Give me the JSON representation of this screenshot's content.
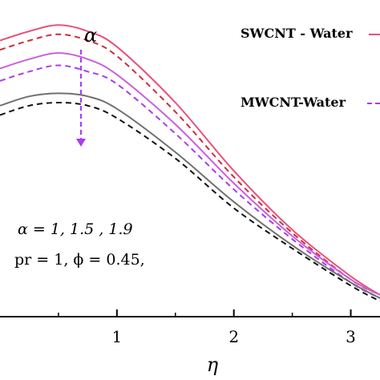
{
  "chart_data": {
    "type": "line",
    "xlabel": "η",
    "x_ticks": [
      "1",
      "2",
      "3"
    ],
    "xlim": [
      0,
      3.25
    ],
    "ylim": [
      0,
      1
    ],
    "grid": false,
    "legend_position": "top-right",
    "legend": [
      "SWCNT - Water",
      "MWCNT-Water"
    ],
    "alpha_symbol": "α",
    "annotations": [
      "α = 1, 1.5 , 1.9",
      "pr = 1, ϕ = 0.45,"
    ],
    "series": [
      {
        "group": "SWCNT - Water",
        "alpha": "1",
        "color": "#e8517a",
        "dash": "solid",
        "x": [
          0,
          0.25,
          0.5,
          0.75,
          1,
          1.5,
          2,
          2.5,
          3,
          3.25
        ],
        "y": [
          0.89,
          0.92,
          0.94,
          0.92,
          0.87,
          0.69,
          0.47,
          0.28,
          0.13,
          0.07
        ]
      },
      {
        "group": "MWCNT-Water",
        "alpha": "1",
        "color": "#cc2d3a",
        "dash": "dashed",
        "x": [
          0,
          0.25,
          0.5,
          0.75,
          1,
          1.5,
          2,
          2.5,
          3,
          3.25
        ],
        "y": [
          0.86,
          0.89,
          0.91,
          0.89,
          0.84,
          0.66,
          0.45,
          0.27,
          0.12,
          0.07
        ]
      },
      {
        "group": "SWCNT - Water",
        "alpha": "1.5",
        "color": "#cc5fdc",
        "dash": "solid",
        "x": [
          0,
          0.25,
          0.5,
          0.75,
          1,
          1.5,
          2,
          2.5,
          3,
          3.25
        ],
        "y": [
          0.8,
          0.83,
          0.85,
          0.83,
          0.78,
          0.62,
          0.43,
          0.26,
          0.12,
          0.07
        ]
      },
      {
        "group": "MWCNT-Water",
        "alpha": "1.5",
        "color": "#a83cf0",
        "dash": "dashed",
        "x": [
          0,
          0.25,
          0.5,
          0.75,
          1,
          1.5,
          2,
          2.5,
          3,
          3.25
        ],
        "y": [
          0.76,
          0.79,
          0.81,
          0.79,
          0.75,
          0.59,
          0.41,
          0.25,
          0.11,
          0.06
        ]
      },
      {
        "group": "SWCNT - Water",
        "alpha": "1.9",
        "color": "#707070",
        "dash": "solid",
        "x": [
          0,
          0.25,
          0.5,
          0.75,
          1,
          1.5,
          2,
          2.5,
          3,
          3.25
        ],
        "y": [
          0.68,
          0.71,
          0.72,
          0.71,
          0.67,
          0.53,
          0.37,
          0.23,
          0.11,
          0.06
        ]
      },
      {
        "group": "MWCNT-Water",
        "alpha": "1.9",
        "color": "#111111",
        "dash": "dashed",
        "x": [
          0,
          0.25,
          0.5,
          0.75,
          1,
          1.5,
          2,
          2.5,
          3,
          3.25
        ],
        "y": [
          0.65,
          0.68,
          0.69,
          0.68,
          0.64,
          0.51,
          0.35,
          0.22,
          0.1,
          0.05
        ]
      }
    ]
  }
}
